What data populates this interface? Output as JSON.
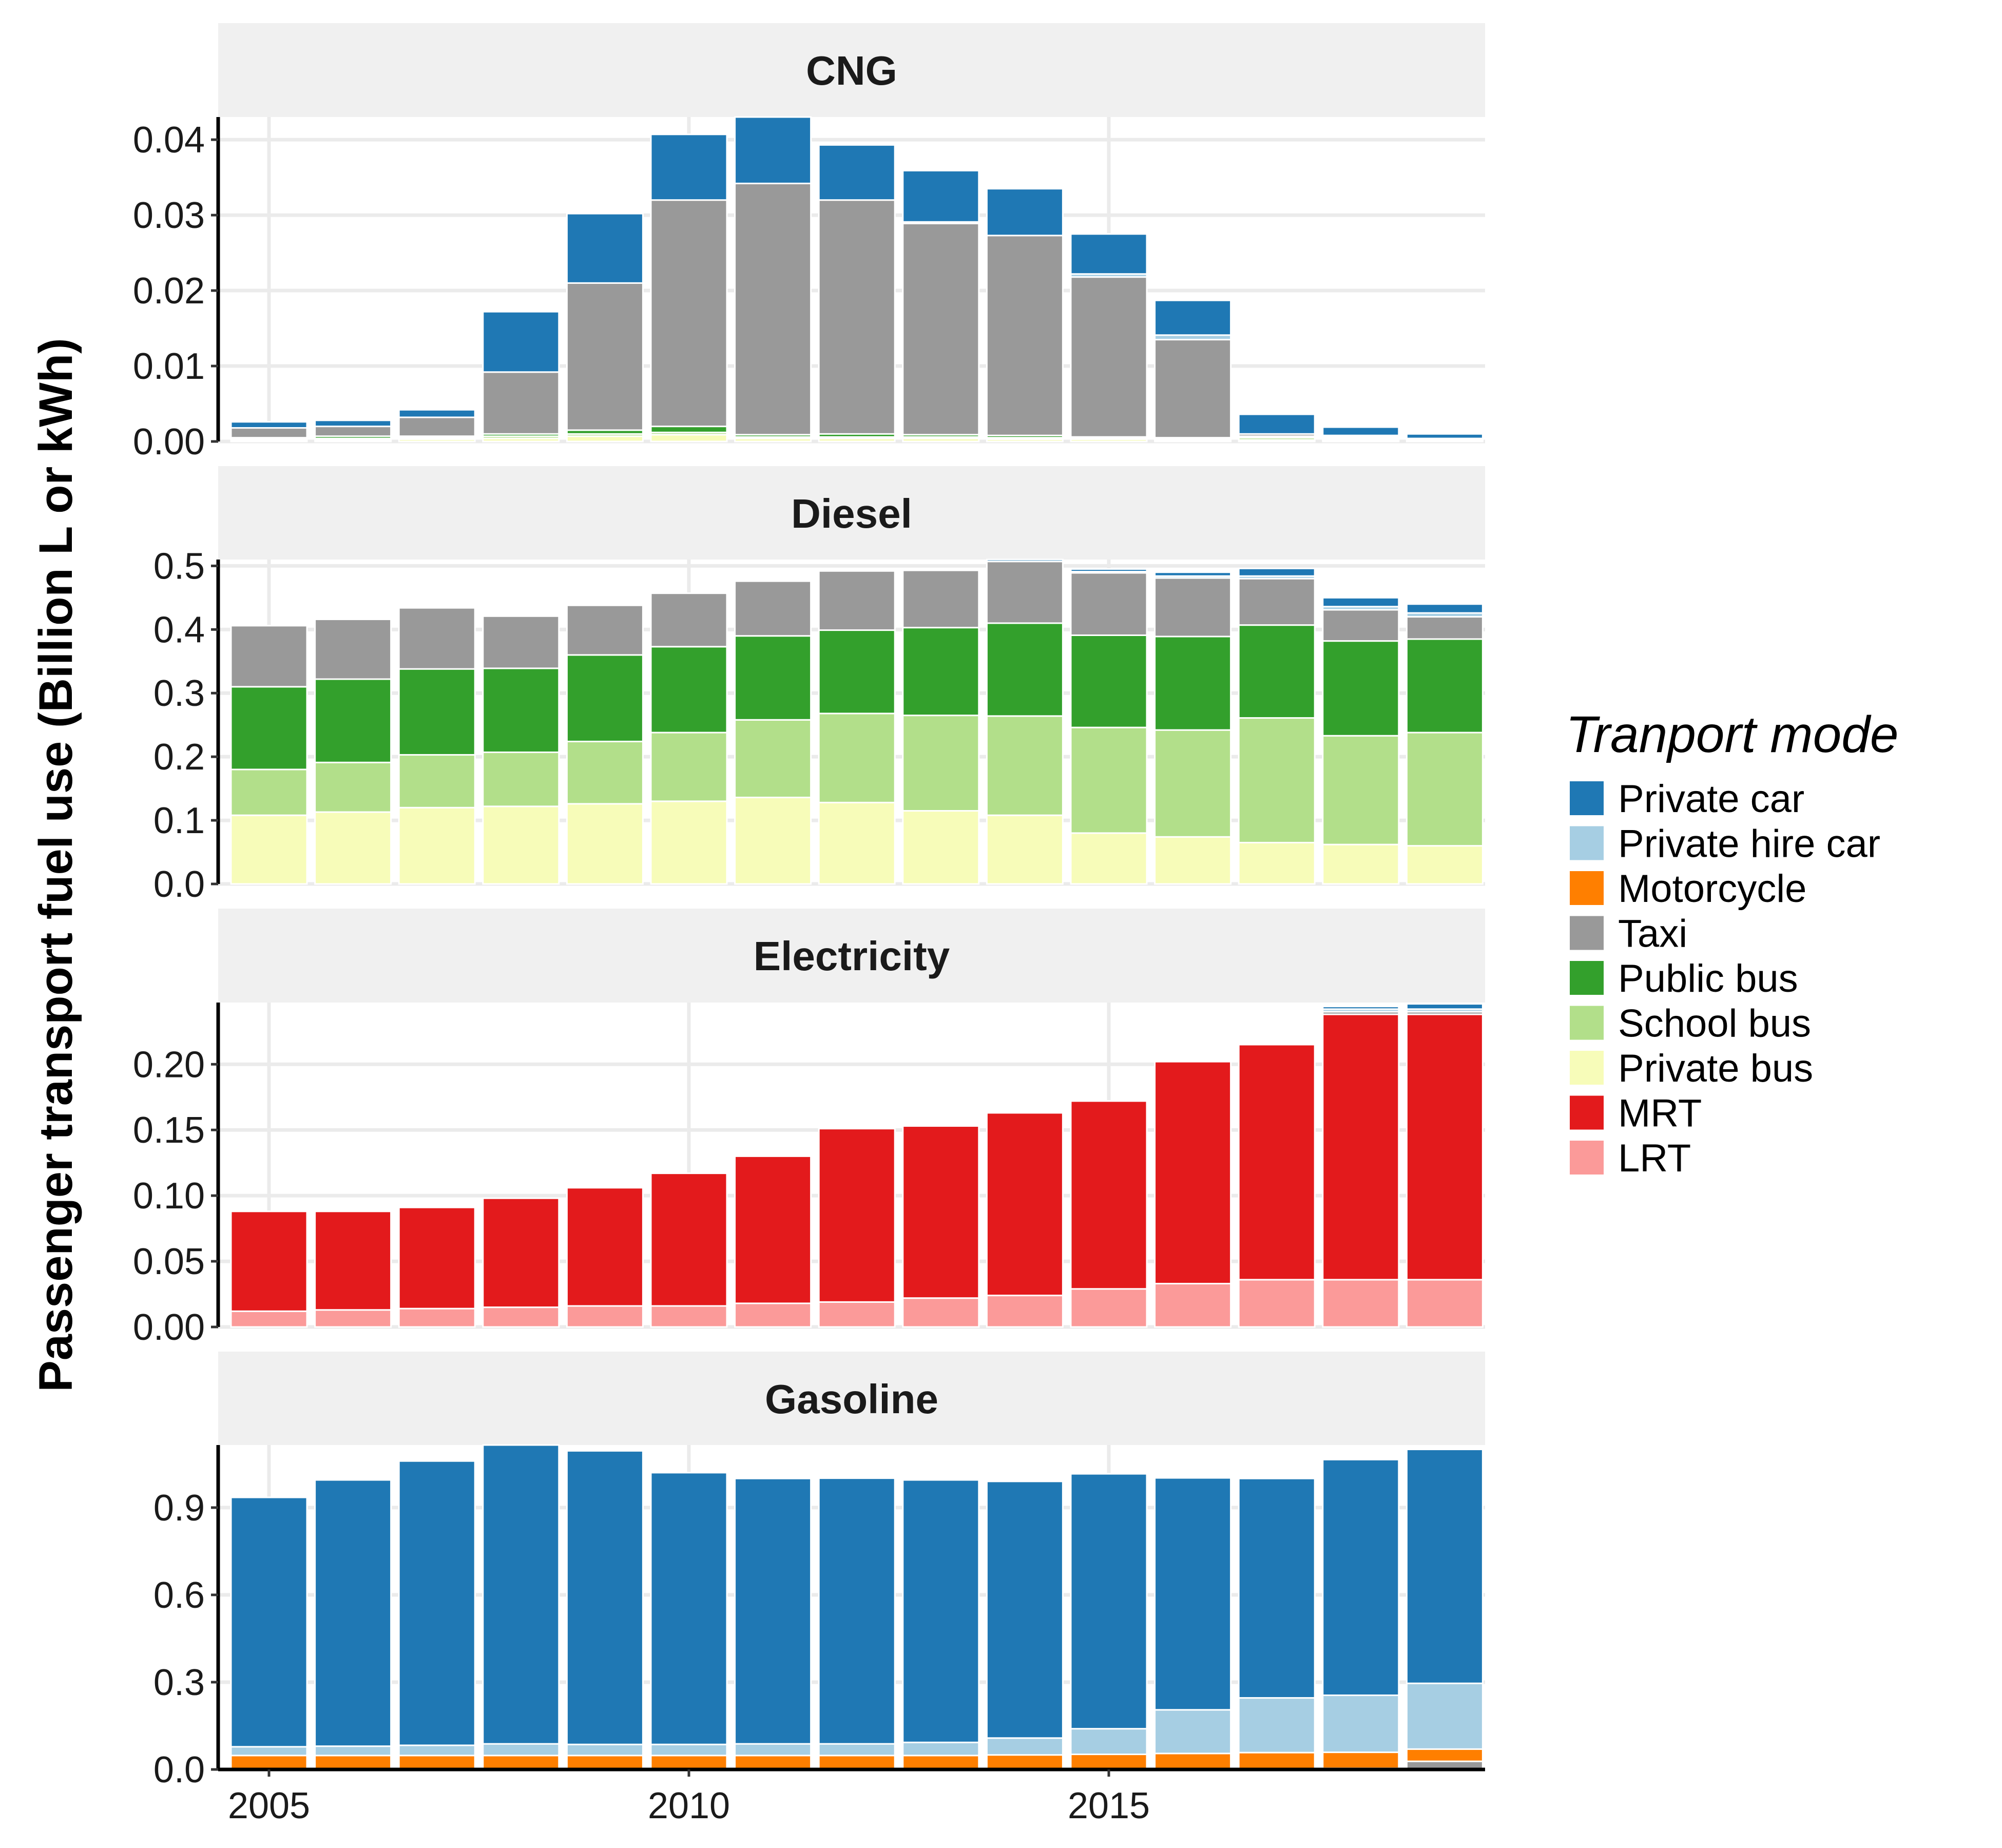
{
  "y_axis_label": "Passenger transport fuel use (Billion L or kWh)",
  "legend": {
    "title": "Tranport mode",
    "items": [
      {
        "name": "Private car",
        "color": "#1f78b4"
      },
      {
        "name": "Private hire car",
        "color": "#a6cee3"
      },
      {
        "name": "Motorcycle",
        "color": "#ff7f00"
      },
      {
        "name": "Taxi",
        "color": "#999999"
      },
      {
        "name": "Public bus",
        "color": "#33a02c"
      },
      {
        "name": "School bus",
        "color": "#b2df8a"
      },
      {
        "name": "Private bus",
        "color": "#f7fcb9"
      },
      {
        "name": "MRT",
        "color": "#e31a1c"
      },
      {
        "name": "LRT",
        "color": "#fb9a99"
      }
    ]
  },
  "chart_data": {
    "type": "bar",
    "stacked": true,
    "grid": true,
    "legend_position": "right",
    "years": [
      2005,
      2006,
      2007,
      2008,
      2009,
      2010,
      2011,
      2012,
      2013,
      2014,
      2015,
      2016,
      2017,
      2018,
      2019
    ],
    "x_ticks": [
      "2005",
      "2010",
      "2015"
    ],
    "panels": [
      {
        "title": "CNG",
        "ylim": [
          0,
          0.043
        ],
        "y_ticks": [
          {
            "value": 0.0,
            "label": "0.00"
          },
          {
            "value": 0.01,
            "label": "0.01"
          },
          {
            "value": 0.02,
            "label": "0.02"
          },
          {
            "value": 0.03,
            "label": "0.03"
          },
          {
            "value": 0.04,
            "label": "0.04"
          }
        ],
        "series": [
          {
            "name": "Private bus",
            "values": [
              0.0002,
              0.0002,
              0.0003,
              0.0004,
              0.0007,
              0.0009,
              0.0004,
              0.0004,
              0.0004,
              0.0003,
              0.0003,
              0.0002,
              0.0002,
              0.0002,
              0.0001
            ]
          },
          {
            "name": "School bus",
            "values": [
              0.0001,
              0.0002,
              0.0002,
              0.0003,
              0.0003,
              0.0003,
              0.0002,
              0.0002,
              0.0002,
              0.0002,
              0.0001,
              0.0001,
              0.0003,
              0.0002,
              0.0001
            ]
          },
          {
            "name": "Public bus",
            "values": [
              0.0002,
              0.0003,
              0.0002,
              0.0003,
              0.0005,
              0.0008,
              0.0003,
              0.0004,
              0.0003,
              0.0003,
              0.0002,
              0.0002,
              0.0002,
              0.0002,
              0.0001
            ]
          },
          {
            "name": "Taxi",
            "values": [
              0.0013,
              0.0013,
              0.0025,
              0.0082,
              0.0195,
              0.03,
              0.0333,
              0.031,
              0.028,
              0.0265,
              0.0212,
              0.013,
              0.0003,
              0.0002,
              0.0001
            ]
          },
          {
            "name": "Private hire car",
            "values": [
              0,
              0,
              0,
              0,
              0,
              0,
              0,
              0,
              0.0002,
              0,
              0.0004,
              0.0006,
              0,
              0,
              0
            ]
          },
          {
            "name": "Private car",
            "values": [
              0.0008,
              0.0008,
              0.001,
              0.008,
              0.0092,
              0.0087,
              0.0088,
              0.0073,
              0.0068,
              0.0062,
              0.0053,
              0.0046,
              0.0026,
              0.0011,
              0.0006
            ]
          }
        ]
      },
      {
        "title": "Diesel",
        "ylim": [
          0,
          0.51
        ],
        "y_ticks": [
          {
            "value": 0.0,
            "label": "0.0"
          },
          {
            "value": 0.1,
            "label": "0.1"
          },
          {
            "value": 0.2,
            "label": "0.2"
          },
          {
            "value": 0.3,
            "label": "0.3"
          },
          {
            "value": 0.4,
            "label": "0.4"
          },
          {
            "value": 0.5,
            "label": "0.5"
          }
        ],
        "series": [
          {
            "name": "Private bus",
            "values": [
              0.108,
              0.113,
              0.12,
              0.122,
              0.126,
              0.13,
              0.136,
              0.128,
              0.115,
              0.108,
              0.08,
              0.074,
              0.065,
              0.062,
              0.06
            ]
          },
          {
            "name": "School bus",
            "values": [
              0.072,
              0.078,
              0.083,
              0.085,
              0.098,
              0.108,
              0.122,
              0.14,
              0.15,
              0.156,
              0.166,
              0.168,
              0.196,
              0.171,
              0.178
            ]
          },
          {
            "name": "Public bus",
            "values": [
              0.13,
              0.131,
              0.135,
              0.132,
              0.136,
              0.135,
              0.132,
              0.131,
              0.138,
              0.146,
              0.145,
              0.147,
              0.146,
              0.149,
              0.147
            ]
          },
          {
            "name": "Taxi",
            "values": [
              0.096,
              0.094,
              0.096,
              0.082,
              0.078,
              0.084,
              0.086,
              0.093,
              0.09,
              0.097,
              0.098,
              0.092,
              0.073,
              0.049,
              0.035
            ]
          },
          {
            "name": "Private hire car",
            "values": [
              0,
              0,
              0,
              0,
              0,
              0,
              0,
              0,
              0,
              0,
              0.002,
              0.003,
              0.004,
              0.005,
              0.006
            ]
          },
          {
            "name": "Private car",
            "values": [
              0,
              0,
              0,
              0,
              0,
              0,
              0,
              0,
              0.002,
              0.003,
              0.004,
              0.006,
              0.012,
              0.014,
              0.014
            ]
          }
        ]
      },
      {
        "title": "Electricity",
        "ylim": [
          0,
          0.247
        ],
        "y_ticks": [
          {
            "value": 0.0,
            "label": "0.00"
          },
          {
            "value": 0.05,
            "label": "0.05"
          },
          {
            "value": 0.1,
            "label": "0.10"
          },
          {
            "value": 0.15,
            "label": "0.15"
          },
          {
            "value": 0.2,
            "label": "0.20"
          }
        ],
        "series": [
          {
            "name": "LRT",
            "values": [
              0.012,
              0.013,
              0.014,
              0.015,
              0.016,
              0.016,
              0.018,
              0.019,
              0.022,
              0.024,
              0.029,
              0.033,
              0.036,
              0.036,
              0.036
            ]
          },
          {
            "name": "MRT",
            "values": [
              0.076,
              0.075,
              0.077,
              0.083,
              0.09,
              0.101,
              0.112,
              0.132,
              0.131,
              0.139,
              0.143,
              0.169,
              0.179,
              0.202,
              0.202
            ]
          },
          {
            "name": "Taxi",
            "values": [
              0,
              0,
              0,
              0,
              0,
              0,
              0,
              0,
              0,
              0,
              0,
              0,
              0,
              0.002,
              0.002
            ]
          },
          {
            "name": "Private hire car",
            "values": [
              0,
              0,
              0,
              0,
              0,
              0,
              0,
              0,
              0,
              0,
              0,
              0,
              0.001,
              0.002,
              0.002
            ]
          },
          {
            "name": "Private car",
            "values": [
              0,
              0,
              0,
              0,
              0,
              0,
              0,
              0,
              0,
              0,
              0,
              0,
              0.001,
              0.002,
              0.004
            ]
          }
        ]
      },
      {
        "title": "Gasoline",
        "ylim": [
          0,
          1.115
        ],
        "y_ticks": [
          {
            "value": 0.0,
            "label": "0.0"
          },
          {
            "value": 0.3,
            "label": "0.3"
          },
          {
            "value": 0.6,
            "label": "0.6"
          },
          {
            "value": 0.9,
            "label": "0.9"
          }
        ],
        "series": [
          {
            "name": "Taxi",
            "values": [
              0,
              0,
              0,
              0,
              0,
              0,
              0,
              0,
              0,
              0,
              0,
              0,
              0,
              0.004,
              0.028
            ]
          },
          {
            "name": "Motorcycle",
            "values": [
              0.048,
              0.048,
              0.048,
              0.048,
              0.048,
              0.048,
              0.048,
              0.048,
              0.048,
              0.05,
              0.052,
              0.055,
              0.058,
              0.055,
              0.042
            ]
          },
          {
            "name": "Private hire car",
            "values": [
              0.03,
              0.032,
              0.035,
              0.04,
              0.038,
              0.038,
              0.04,
              0.04,
              0.045,
              0.058,
              0.088,
              0.15,
              0.188,
              0.196,
              0.226
            ]
          },
          {
            "name": "Private car",
            "values": [
              0.857,
              0.915,
              0.977,
              1.027,
              1.009,
              0.934,
              0.912,
              0.913,
              0.902,
              0.882,
              0.876,
              0.797,
              0.754,
              0.81,
              0.804
            ]
          }
        ]
      }
    ]
  }
}
